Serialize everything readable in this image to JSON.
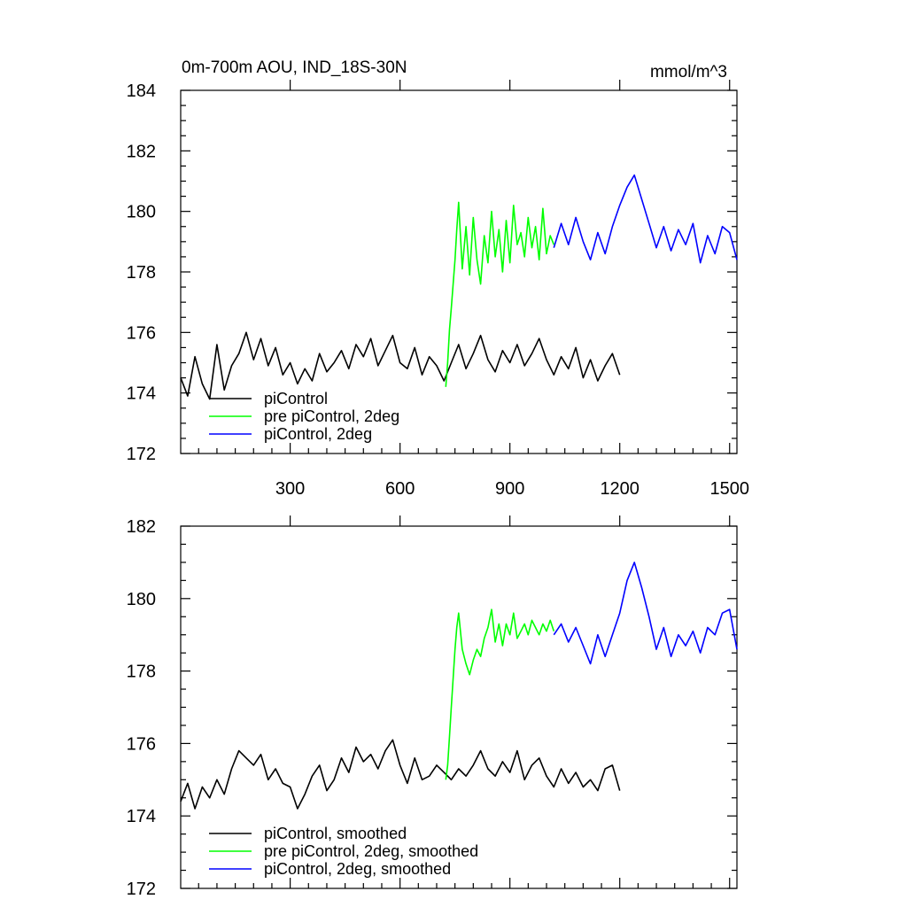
{
  "chart_data": [
    {
      "type": "line",
      "title_left": "0m-700m AOU, IND_18S-30N",
      "title_right": "mmol/m^3",
      "xlabel": "",
      "ylabel": "",
      "xlim": [
        1,
        1520
      ],
      "ylim": [
        172,
        184
      ],
      "x_ticks": [
        300,
        600,
        900,
        1200,
        1500
      ],
      "x_tick_labels": [
        "300",
        "600",
        "900",
        "1200",
        "1500"
      ],
      "y_ticks": [
        172,
        174,
        176,
        178,
        180,
        182,
        184
      ],
      "y_tick_labels": [
        "172",
        "174",
        "176",
        "178",
        "180",
        "182",
        "184"
      ],
      "legend_position": "bottom-left",
      "series": [
        {
          "name": "piControl",
          "color": "#000000",
          "x": [
            1,
            20,
            40,
            60,
            80,
            100,
            120,
            140,
            160,
            180,
            200,
            220,
            240,
            260,
            280,
            300,
            320,
            340,
            360,
            380,
            400,
            420,
            440,
            460,
            480,
            500,
            520,
            540,
            560,
            580,
            600,
            620,
            640,
            660,
            680,
            700,
            720,
            740,
            760,
            780,
            800,
            820,
            840,
            860,
            880,
            900,
            920,
            940,
            960,
            980,
            1000,
            1020,
            1040,
            1060,
            1080,
            1100,
            1120,
            1140,
            1160,
            1180,
            1200
          ],
          "y": [
            174.5,
            173.9,
            175.2,
            174.3,
            173.8,
            175.6,
            174.1,
            174.9,
            175.3,
            176.0,
            175.1,
            175.8,
            174.9,
            175.5,
            174.6,
            175.0,
            174.3,
            174.8,
            174.4,
            175.3,
            174.7,
            175.0,
            175.4,
            174.8,
            175.6,
            175.2,
            175.8,
            174.9,
            175.4,
            175.9,
            175.0,
            174.8,
            175.5,
            174.6,
            175.2,
            174.9,
            174.4,
            175.0,
            175.6,
            174.8,
            175.3,
            175.9,
            175.1,
            174.7,
            175.4,
            175.0,
            175.6,
            174.9,
            175.3,
            175.8,
            175.1,
            174.6,
            175.2,
            174.8,
            175.5,
            174.5,
            175.1,
            174.4,
            174.9,
            175.3,
            174.6
          ]
        },
        {
          "name": "pre piControl, 2deg",
          "color": "#00ff00",
          "x": [
            725,
            730,
            735,
            740,
            745,
            750,
            755,
            760,
            770,
            780,
            790,
            800,
            810,
            820,
            830,
            840,
            850,
            860,
            870,
            880,
            890,
            900,
            910,
            920,
            930,
            940,
            950,
            960,
            970,
            980,
            990,
            1000,
            1010,
            1020
          ],
          "y": [
            174.2,
            175.0,
            176.1,
            176.8,
            177.6,
            178.4,
            179.4,
            180.3,
            178.1,
            179.5,
            177.9,
            179.8,
            178.4,
            177.6,
            179.2,
            178.3,
            180.0,
            178.5,
            179.4,
            178.0,
            179.7,
            178.3,
            180.2,
            178.9,
            179.3,
            178.5,
            179.8,
            178.8,
            179.5,
            178.4,
            180.1,
            178.6,
            179.2,
            178.9
          ]
        },
        {
          "name": "piControl, 2deg",
          "color": "#0000ff",
          "x": [
            1020,
            1040,
            1060,
            1080,
            1100,
            1120,
            1140,
            1160,
            1180,
            1200,
            1220,
            1240,
            1260,
            1280,
            1300,
            1320,
            1340,
            1360,
            1380,
            1400,
            1420,
            1440,
            1460,
            1480,
            1500,
            1520
          ],
          "y": [
            178.8,
            179.6,
            178.9,
            179.8,
            179.0,
            178.4,
            179.3,
            178.6,
            179.5,
            180.2,
            180.8,
            181.2,
            180.4,
            179.6,
            178.8,
            179.5,
            178.7,
            179.4,
            178.9,
            179.6,
            178.3,
            179.2,
            178.6,
            179.5,
            179.3,
            178.4
          ]
        }
      ]
    },
    {
      "type": "line",
      "title_left": "",
      "title_right": "",
      "xlabel": "",
      "ylabel": "",
      "xlim": [
        1,
        1520
      ],
      "ylim": [
        172,
        182
      ],
      "x_ticks": [
        300,
        600,
        900,
        1200,
        1500
      ],
      "x_tick_labels": [],
      "y_ticks": [
        172,
        174,
        176,
        178,
        180,
        182
      ],
      "y_tick_labels": [
        "172",
        "174",
        "176",
        "178",
        "180",
        "182"
      ],
      "legend_position": "bottom-left",
      "series": [
        {
          "name": "piControl, smoothed",
          "color": "#000000",
          "x": [
            1,
            20,
            40,
            60,
            80,
            100,
            120,
            140,
            160,
            180,
            200,
            220,
            240,
            260,
            280,
            300,
            320,
            340,
            360,
            380,
            400,
            420,
            440,
            460,
            480,
            500,
            520,
            540,
            560,
            580,
            600,
            620,
            640,
            660,
            680,
            700,
            720,
            740,
            760,
            780,
            800,
            820,
            840,
            860,
            880,
            900,
            920,
            940,
            960,
            980,
            1000,
            1020,
            1040,
            1060,
            1080,
            1100,
            1120,
            1140,
            1160,
            1180,
            1200
          ],
          "y": [
            174.4,
            174.9,
            174.2,
            174.8,
            174.5,
            175.0,
            174.6,
            175.3,
            175.8,
            175.6,
            175.4,
            175.7,
            175.0,
            175.3,
            174.9,
            174.8,
            174.2,
            174.6,
            175.1,
            175.4,
            174.7,
            175.0,
            175.6,
            175.2,
            175.9,
            175.5,
            175.7,
            175.3,
            175.8,
            176.1,
            175.4,
            174.9,
            175.6,
            175.0,
            175.1,
            175.4,
            175.2,
            175.0,
            175.3,
            175.1,
            175.4,
            175.8,
            175.3,
            175.1,
            175.5,
            175.2,
            175.8,
            175.0,
            175.4,
            175.6,
            175.1,
            174.8,
            175.3,
            174.9,
            175.2,
            174.8,
            175.0,
            174.7,
            175.3,
            175.4,
            174.7
          ]
        },
        {
          "name": "pre piControl, 2deg, smoothed",
          "color": "#00ff00",
          "x": [
            725,
            730,
            735,
            740,
            745,
            750,
            755,
            760,
            770,
            780,
            790,
            800,
            810,
            820,
            830,
            840,
            850,
            860,
            870,
            880,
            890,
            900,
            910,
            920,
            930,
            940,
            950,
            960,
            970,
            980,
            990,
            1000,
            1010,
            1020
          ],
          "y": [
            175.0,
            175.4,
            176.2,
            177.0,
            177.8,
            178.6,
            179.2,
            179.6,
            178.6,
            178.2,
            177.9,
            178.3,
            178.6,
            178.4,
            178.9,
            179.2,
            179.7,
            178.8,
            179.3,
            178.7,
            179.3,
            179.0,
            179.6,
            178.9,
            179.1,
            179.3,
            179.0,
            179.4,
            179.2,
            179.0,
            179.3,
            179.1,
            179.4,
            179.1
          ]
        },
        {
          "name": "piControl, 2deg, smoothed",
          "color": "#0000ff",
          "x": [
            1020,
            1040,
            1060,
            1080,
            1100,
            1120,
            1140,
            1160,
            1180,
            1200,
            1220,
            1240,
            1260,
            1280,
            1300,
            1320,
            1340,
            1360,
            1380,
            1400,
            1420,
            1440,
            1460,
            1480,
            1500,
            1520
          ],
          "y": [
            179.0,
            179.3,
            178.8,
            179.2,
            178.7,
            178.2,
            179.0,
            178.4,
            179.0,
            179.6,
            180.5,
            181.0,
            180.3,
            179.5,
            178.6,
            179.2,
            178.4,
            179.0,
            178.7,
            179.1,
            178.5,
            179.2,
            179.0,
            179.6,
            179.7,
            178.6
          ]
        }
      ]
    }
  ]
}
